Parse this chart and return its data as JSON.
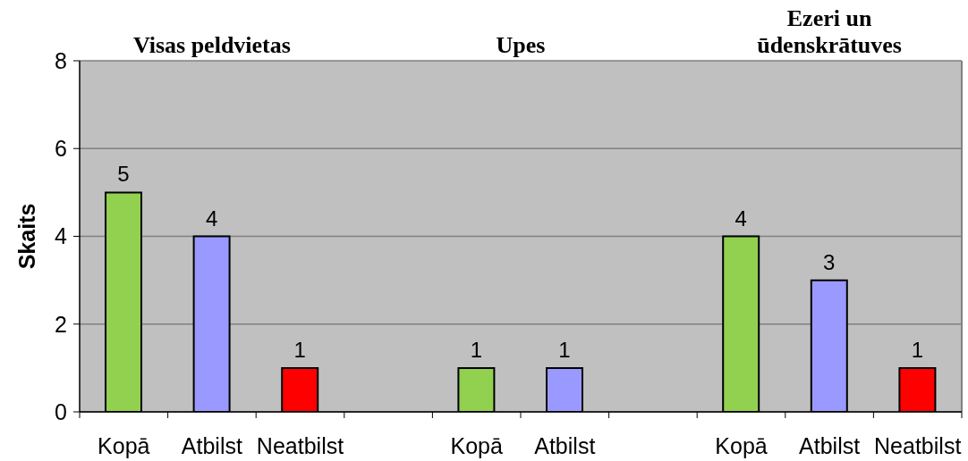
{
  "chart_data": {
    "type": "bar",
    "ylabel": "Skaits",
    "annotations": [
      "Visas peldvietas",
      "Upes",
      "Ezeri un ūdenskrātuves"
    ],
    "categories": [
      "Kopā",
      "Atbilst",
      "Neatbilst",
      null,
      "Kopā",
      "Atbilst",
      null,
      "Kopā",
      "Atbilst",
      "Neatbilst"
    ],
    "values": [
      5,
      4,
      1,
      null,
      1,
      1,
      null,
      4,
      3,
      1
    ],
    "colors": [
      "#92d050",
      "#9999ff",
      "#ff0000",
      null,
      "#92d050",
      "#9999ff",
      null,
      "#92d050",
      "#9999ff",
      "#ff0000"
    ],
    "ylim": [
      0,
      8
    ],
    "yticks": [
      0,
      2,
      4,
      6,
      8
    ],
    "grid": "y",
    "data_labels": true
  }
}
